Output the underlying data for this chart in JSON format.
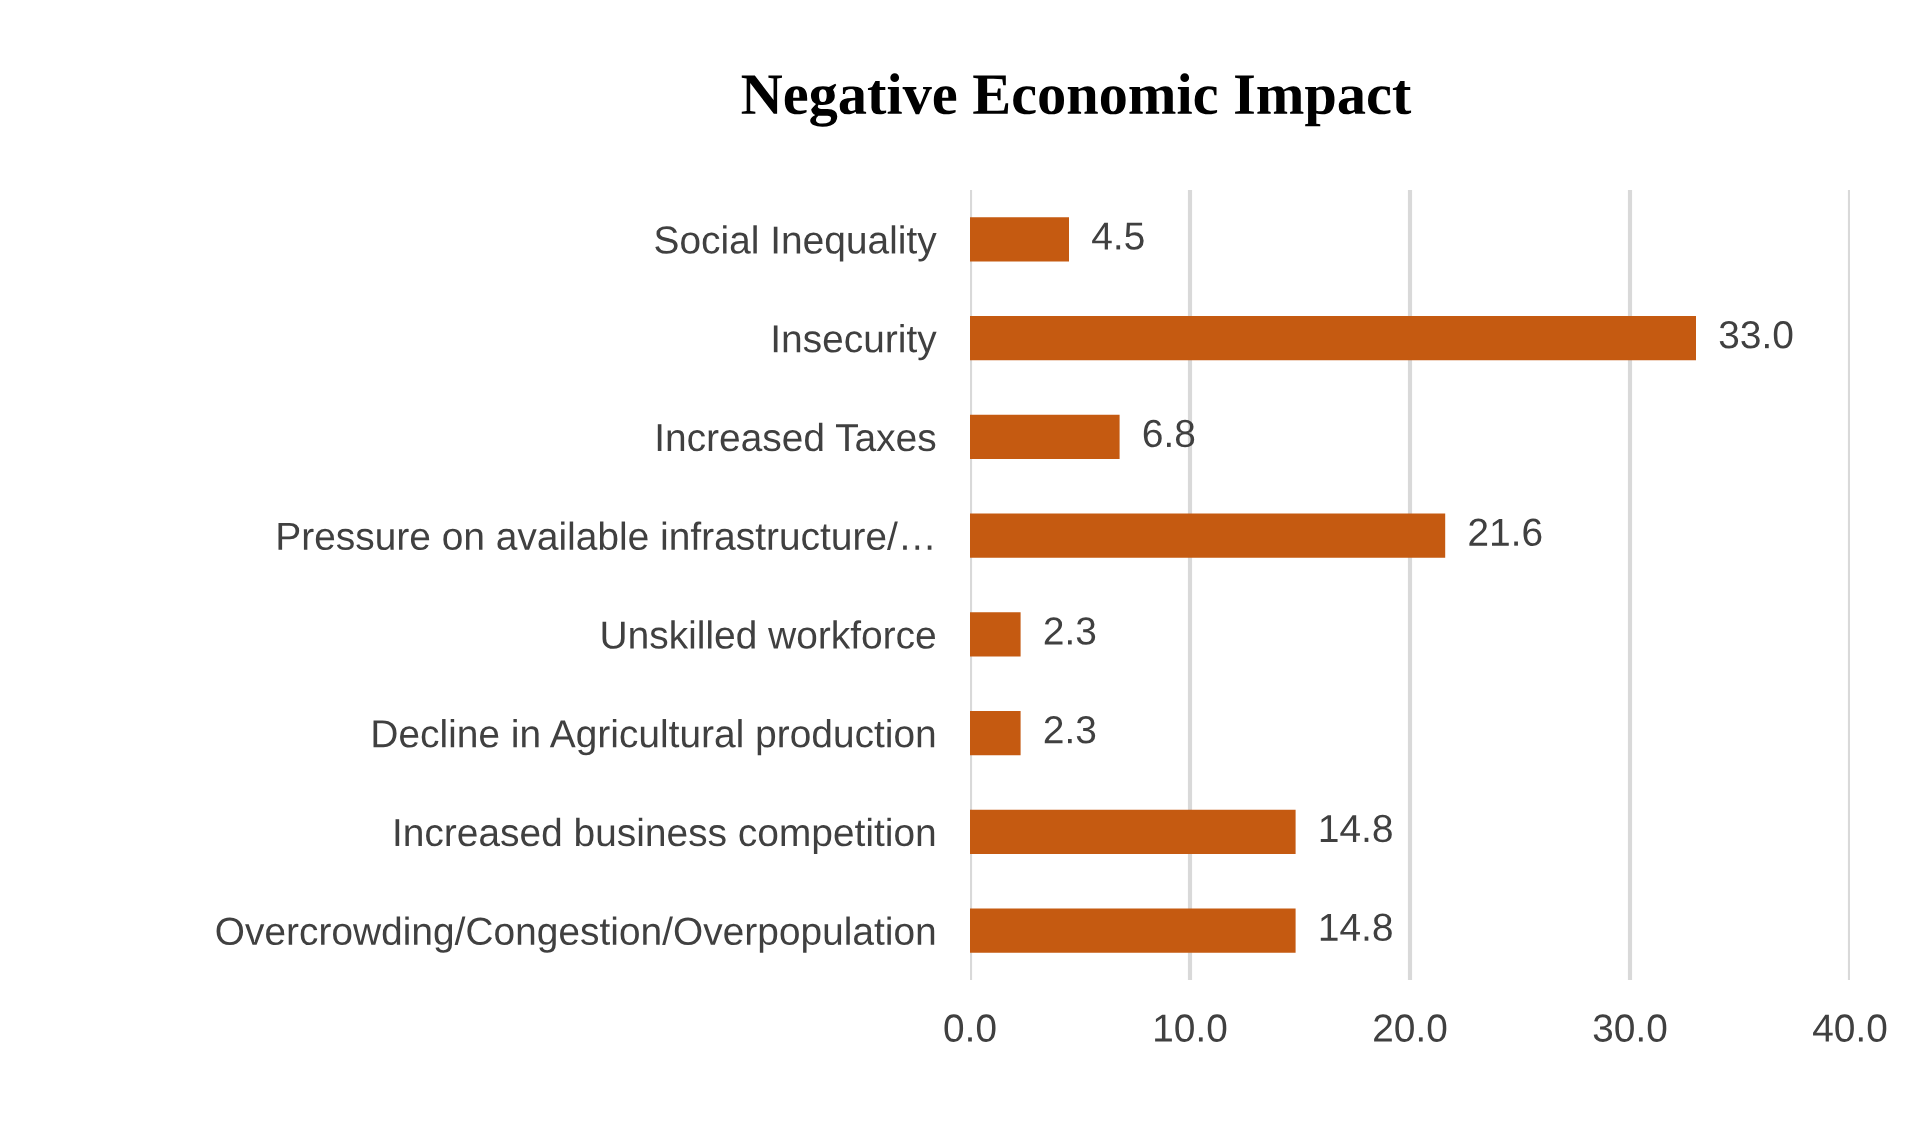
{
  "chart_data": {
    "type": "bar",
    "orientation": "horizontal",
    "title": "Negative Economic Impact",
    "categories": [
      "Social Inequality",
      "Insecurity",
      "Increased Taxes",
      "Pressure on available infrastructure/…",
      "Unskilled workforce",
      "Decline in Agricultural production",
      "Increased business competition",
      "Overcrowding/Congestion/Overpopulation"
    ],
    "values": [
      4.5,
      33.0,
      6.8,
      21.6,
      2.3,
      2.3,
      14.8,
      14.8
    ],
    "value_labels": [
      "4.5",
      "33.0",
      "6.8",
      "21.6",
      "2.3",
      "2.3",
      "14.8",
      "14.8"
    ],
    "color": "#c55a11",
    "xlim": [
      0,
      40
    ],
    "xticks": [
      {
        "value": 0,
        "label": "0.0"
      },
      {
        "value": 10,
        "label": "10.0"
      },
      {
        "value": 20,
        "label": "20.0"
      },
      {
        "value": 30,
        "label": "30.0"
      },
      {
        "value": 40,
        "label": "40.0"
      }
    ],
    "grid": "x",
    "legend": false
  }
}
